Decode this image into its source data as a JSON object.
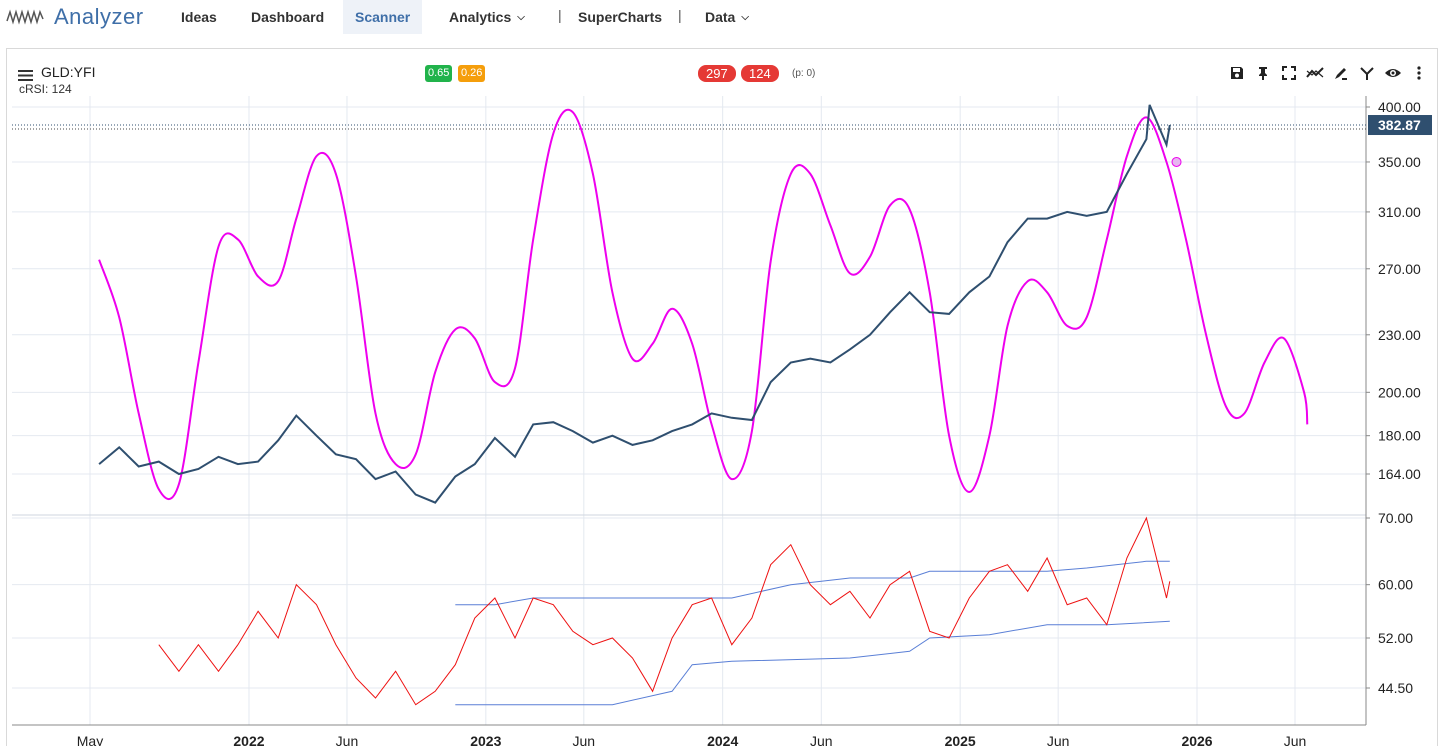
{
  "nav": {
    "brand": "Analyzer",
    "items": [
      {
        "label": "Ideas"
      },
      {
        "label": "Dashboard"
      },
      {
        "label": "Scanner"
      },
      {
        "label": "Analytics"
      },
      {
        "label": "SuperCharts"
      },
      {
        "label": "Data"
      }
    ],
    "separator": "|"
  },
  "panel": {
    "symbol": "GLD:YFI",
    "indicator_label": "cRSI: 124",
    "badge_green": "0.65",
    "badge_orange": "0.26",
    "count_a": "297",
    "count_b": "124",
    "p_label": "(p: 0)"
  },
  "colors": {
    "price": "#2f4f6f",
    "cycle": "#ee00ee",
    "crsi": "#ee1111",
    "bands": "#5a7fd6",
    "accent": "#3f6fa8",
    "price_tag": "#2f4f6f"
  },
  "icons": [
    "menu-icon",
    "save-icon",
    "pin-icon",
    "fullscreen-icon",
    "trend-icon",
    "draw-icon",
    "compare-icon",
    "eye-icon",
    "more-icon"
  ],
  "chart_data": [
    {
      "type": "line",
      "x_ticks": [
        "May",
        "2022",
        "Jun",
        "2023",
        "Jun",
        "2024",
        "Jun",
        "2025",
        "Jun",
        "2026",
        "Jun"
      ],
      "bold_ticks": [
        "2022",
        "2023",
        "2024",
        "2025",
        "2026"
      ],
      "x_range": [
        "2021-05",
        "2026-06"
      ],
      "y_ticks": [
        "400.00",
        "350.00",
        "310.00",
        "270.00",
        "230.00",
        "200.00",
        "180.00",
        "164.00"
      ],
      "y_scale": "log",
      "last_price": "382.87",
      "series": [
        {
          "name": "GLD",
          "values": [
            [
              "2021-05",
              168
            ],
            [
              "2021-06",
              175
            ],
            [
              "2021-07",
              167
            ],
            [
              "2021-08",
              169
            ],
            [
              "2021-09",
              164
            ],
            [
              "2021-10",
              166
            ],
            [
              "2021-11",
              171
            ],
            [
              "2021-12",
              168
            ],
            [
              "2022-01",
              169
            ],
            [
              "2022-02",
              178
            ],
            [
              "2022-03",
              189
            ],
            [
              "2022-04",
              180
            ],
            [
              "2022-05",
              172
            ],
            [
              "2022-06",
              170
            ],
            [
              "2022-07",
              162
            ],
            [
              "2022-08",
              165
            ],
            [
              "2022-09",
              156
            ],
            [
              "2022-10",
              153
            ],
            [
              "2022-11",
              163
            ],
            [
              "2022-12",
              168
            ],
            [
              "2023-01",
              179
            ],
            [
              "2023-02",
              171
            ],
            [
              "2023-03",
              185
            ],
            [
              "2023-04",
              186
            ],
            [
              "2023-05",
              182
            ],
            [
              "2023-06",
              177
            ],
            [
              "2023-07",
              180
            ],
            [
              "2023-08",
              176
            ],
            [
              "2023-09",
              178
            ],
            [
              "2023-10",
              182
            ],
            [
              "2023-11",
              185
            ],
            [
              "2023-12",
              190
            ],
            [
              "2024-01",
              188
            ],
            [
              "2024-02",
              187
            ],
            [
              "2024-03",
              205
            ],
            [
              "2024-04",
              215
            ],
            [
              "2024-05",
              217
            ],
            [
              "2024-06",
              215
            ],
            [
              "2024-07",
              222
            ],
            [
              "2024-08",
              230
            ],
            [
              "2024-09",
              243
            ],
            [
              "2024-10",
              255
            ],
            [
              "2024-11",
              243
            ],
            [
              "2024-12",
              242
            ],
            [
              "2025-01",
              255
            ],
            [
              "2025-02",
              265
            ],
            [
              "2025-03",
              288
            ],
            [
              "2025-04",
              305
            ],
            [
              "2025-05",
              305
            ],
            [
              "2025-06",
              310
            ],
            [
              "2025-07",
              307
            ],
            [
              "2025-08",
              310
            ],
            [
              "2025-09",
              340
            ],
            [
              "2025-10",
              370
            ],
            [
              "2025-10-20",
              402
            ],
            [
              "2025-11",
              365
            ],
            [
              "2025-11-20",
              382.87
            ]
          ]
        },
        {
          "name": "cycle",
          "values": [
            [
              "2021-05",
              276
            ],
            [
              "2021-06",
              240
            ],
            [
              "2021-07",
              190
            ],
            [
              "2021-08",
              158
            ],
            [
              "2021-09",
              160
            ],
            [
              "2021-10",
              215
            ],
            [
              "2021-11",
              285
            ],
            [
              "2021-12",
              290
            ],
            [
              "2022-01",
              265
            ],
            [
              "2022-02",
              262
            ],
            [
              "2022-03",
              305
            ],
            [
              "2022-04",
              355
            ],
            [
              "2022-05",
              340
            ],
            [
              "2022-06",
              265
            ],
            [
              "2022-07",
              190
            ],
            [
              "2022-08",
              168
            ],
            [
              "2022-09",
              172
            ],
            [
              "2022-10",
              210
            ],
            [
              "2022-11",
              233
            ],
            [
              "2022-12",
              228
            ],
            [
              "2023-01",
              205
            ],
            [
              "2023-02",
              212
            ],
            [
              "2023-03",
              290
            ],
            [
              "2023-04",
              375
            ],
            [
              "2023-05",
              395
            ],
            [
              "2023-06",
              340
            ],
            [
              "2023-07",
              255
            ],
            [
              "2023-08",
              217
            ],
            [
              "2023-09",
              225
            ],
            [
              "2023-10",
              245
            ],
            [
              "2023-11",
              225
            ],
            [
              "2023-12",
              185
            ],
            [
              "2024-01",
              162
            ],
            [
              "2024-02",
              182
            ],
            [
              "2024-03",
              275
            ],
            [
              "2024-04",
              340
            ],
            [
              "2024-05",
              340
            ],
            [
              "2024-06",
              300
            ],
            [
              "2024-07",
              267
            ],
            [
              "2024-08",
              278
            ],
            [
              "2024-09",
              315
            ],
            [
              "2024-10",
              312
            ],
            [
              "2024-11",
              255
            ],
            [
              "2024-12",
              180
            ],
            [
              "2025-01",
              157
            ],
            [
              "2025-02",
              180
            ],
            [
              "2025-03",
              235
            ],
            [
              "2025-04",
              262
            ],
            [
              "2025-05",
              255
            ],
            [
              "2025-06",
              235
            ],
            [
              "2025-07",
              240
            ],
            [
              "2025-08",
              290
            ],
            [
              "2025-09",
              355
            ],
            [
              "2025-10",
              390
            ],
            [
              "2025-11",
              350
            ],
            [
              "2025-12",
              290
            ],
            [
              "2026-01",
              230
            ],
            [
              "2026-02",
              193
            ],
            [
              "2026-03",
              190
            ],
            [
              "2026-04",
              215
            ],
            [
              "2026-05",
              228
            ],
            [
              "2026-06",
              200
            ],
            [
              "2026-06-20",
              185
            ]
          ]
        }
      ]
    },
    {
      "type": "line",
      "y_ticks": [
        "70.00",
        "60.00",
        "52.00",
        "44.50"
      ],
      "series": [
        {
          "name": "cRSI",
          "values": [
            [
              "2021-08",
              51
            ],
            [
              "2021-09",
              47
            ],
            [
              "2021-10",
              51
            ],
            [
              "2021-11",
              47
            ],
            [
              "2021-12",
              51
            ],
            [
              "2022-01",
              56
            ],
            [
              "2022-02",
              52
            ],
            [
              "2022-03",
              60
            ],
            [
              "2022-04",
              57
            ],
            [
              "2022-05",
              51
            ],
            [
              "2022-06",
              46
            ],
            [
              "2022-07",
              43
            ],
            [
              "2022-08",
              47
            ],
            [
              "2022-09",
              42
            ],
            [
              "2022-10",
              44
            ],
            [
              "2022-11",
              48
            ],
            [
              "2022-12",
              55
            ],
            [
              "2023-01",
              58
            ],
            [
              "2023-02",
              52
            ],
            [
              "2023-03",
              58
            ],
            [
              "2023-04",
              57
            ],
            [
              "2023-05",
              53
            ],
            [
              "2023-06",
              51
            ],
            [
              "2023-07",
              52
            ],
            [
              "2023-08",
              49
            ],
            [
              "2023-09",
              44
            ],
            [
              "2023-10",
              52
            ],
            [
              "2023-11",
              57
            ],
            [
              "2023-12",
              58
            ],
            [
              "2024-01",
              51
            ],
            [
              "2024-02",
              55
            ],
            [
              "2024-03",
              63
            ],
            [
              "2024-04",
              66
            ],
            [
              "2024-05",
              60
            ],
            [
              "2024-06",
              57
            ],
            [
              "2024-07",
              59
            ],
            [
              "2024-08",
              55
            ],
            [
              "2024-09",
              60
            ],
            [
              "2024-10",
              62
            ],
            [
              "2024-11",
              53
            ],
            [
              "2024-12",
              52
            ],
            [
              "2025-01",
              58
            ],
            [
              "2025-02",
              62
            ],
            [
              "2025-03",
              63
            ],
            [
              "2025-04",
              59
            ],
            [
              "2025-05",
              64
            ],
            [
              "2025-06",
              57
            ],
            [
              "2025-07",
              58
            ],
            [
              "2025-08",
              54
            ],
            [
              "2025-09",
              64
            ],
            [
              "2025-10",
              70
            ],
            [
              "2025-11",
              58
            ],
            [
              "2025-11-20",
              60.5
            ]
          ]
        },
        {
          "name": "upper band",
          "values": [
            [
              "2022-11",
              57
            ],
            [
              "2023-01",
              57
            ],
            [
              "2023-03",
              58
            ],
            [
              "2023-07",
              58
            ],
            [
              "2024-01",
              58
            ],
            [
              "2024-04",
              60
            ],
            [
              "2024-07",
              61
            ],
            [
              "2024-10",
              61
            ],
            [
              "2024-11",
              62
            ],
            [
              "2025-02",
              62
            ],
            [
              "2025-05",
              62
            ],
            [
              "2025-07",
              62.5
            ],
            [
              "2025-10",
              63.5
            ],
            [
              "2025-11-20",
              63.5
            ]
          ]
        },
        {
          "name": "lower band",
          "values": [
            [
              "2022-11",
              42
            ],
            [
              "2023-01",
              42
            ],
            [
              "2023-07",
              42
            ],
            [
              "2023-10",
              44
            ],
            [
              "2023-11",
              48
            ],
            [
              "2024-01",
              48.5
            ],
            [
              "2024-07",
              49
            ],
            [
              "2024-10",
              50
            ],
            [
              "2024-11",
              52
            ],
            [
              "2025-02",
              52.5
            ],
            [
              "2025-05",
              54
            ],
            [
              "2025-08",
              54
            ],
            [
              "2025-11-20",
              54.5
            ]
          ]
        }
      ]
    }
  ]
}
